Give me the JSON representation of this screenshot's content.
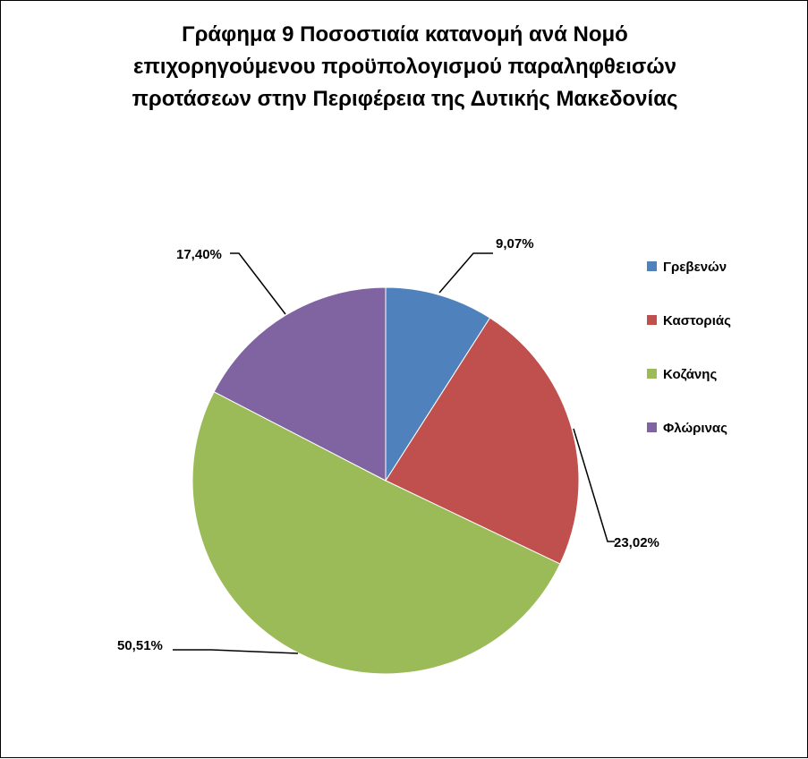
{
  "chart_data": {
    "type": "pie",
    "title_lines": [
      "Γράφημα 9 Ποσοστιαία κατανομή ανά Νομό",
      "επιχορηγούμενου προϋπολογισμού παραληφθεισών",
      "προτάσεων στην Περιφέρεια  της Δυτικής Μακεδονίας"
    ],
    "categories": [
      "Γρεβενών",
      "Καστοριάς",
      "Κοζάνης",
      "Φλώρινας"
    ],
    "values": [
      9.07,
      23.02,
      50.51,
      17.4
    ],
    "data_labels": [
      "9,07%",
      "23,02%",
      "50,51%",
      "17,40%"
    ],
    "colors": [
      "#4F81BD",
      "#C0504D",
      "#9BBB59",
      "#8064A2"
    ],
    "legend_position": "right"
  }
}
